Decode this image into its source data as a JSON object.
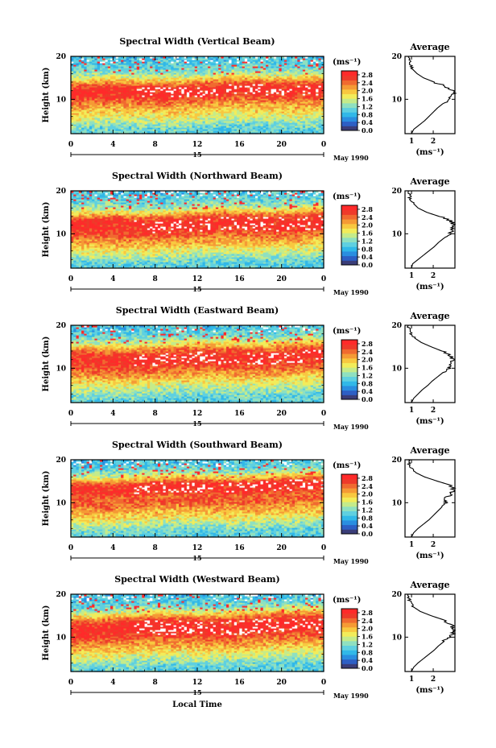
{
  "colors": {
    "scale": [
      "#3a3d78",
      "#2d5fc4",
      "#2a8ee0",
      "#31b8e8",
      "#5fd0e0",
      "#8fe0c0",
      "#c5eb8a",
      "#f2ec5a",
      "#f8c840",
      "#f59a35",
      "#f06a30",
      "#ee3a2a",
      "#ff2a2a"
    ]
  },
  "figure": {
    "xlabel": "Local Time",
    "date_label": "May 1990",
    "colorbar_unit": "(ms⁻¹)",
    "average_unit": "(ms⁻¹)",
    "height_label": "Height (km)"
  },
  "chart_data": [
    {
      "type": "heatmap",
      "title": "Spectral Width (Vertical Beam)",
      "ylabel": "Height (km)",
      "x_ticks": [
        "0",
        "4",
        "8",
        "12",
        "16",
        "20",
        "0"
      ],
      "xlim": [
        0,
        24
      ],
      "y_ticks": [
        "10",
        "20"
      ],
      "ylim": [
        2,
        20
      ],
      "day_label": "15",
      "date_label": "May 1990",
      "colorbar": {
        "unit": "(ms⁻¹)",
        "ticks": [
          "2.8",
          "2.4",
          "2.0",
          "1.6",
          "1.2",
          "0.8",
          "0.4",
          "0.0"
        ],
        "range": [
          0,
          3.0
        ]
      },
      "average": {
        "title": "Average",
        "x_ticks": [
          "1",
          "2"
        ],
        "xlim": [
          0.7,
          3.0
        ],
        "y_ticks": [
          "10",
          "20"
        ],
        "ylim": [
          2,
          20
        ],
        "xlabel": "(ms⁻¹)",
        "profile": {
          "height": [
            2,
            3,
            4,
            5,
            6,
            7,
            8,
            9,
            10,
            11,
            12,
            13,
            14,
            15,
            16,
            17,
            18,
            19,
            20
          ],
          "width": [
            1.0,
            1.1,
            1.35,
            1.6,
            1.8,
            2.0,
            2.2,
            2.45,
            2.7,
            2.95,
            2.9,
            2.6,
            2.05,
            1.55,
            1.25,
            1.05,
            0.95,
            0.9,
            0.85
          ]
        }
      }
    },
    {
      "type": "heatmap",
      "title": "Spectral Width (Northward Beam)",
      "ylabel": "Height (km)",
      "x_ticks": [
        "0",
        "4",
        "8",
        "12",
        "16",
        "20",
        "0"
      ],
      "xlim": [
        0,
        24
      ],
      "y_ticks": [
        "10",
        "20"
      ],
      "ylim": [
        2,
        20
      ],
      "day_label": "15",
      "date_label": "May 1990",
      "colorbar": {
        "unit": "(ms⁻¹)",
        "ticks": [
          "2.8",
          "2.4",
          "2.0",
          "1.6",
          "1.2",
          "0.8",
          "0.4",
          "0.0"
        ],
        "range": [
          0,
          3.0
        ]
      },
      "average": {
        "title": "Average",
        "x_ticks": [
          "1",
          "2"
        ],
        "xlim": [
          0.7,
          3.0
        ],
        "y_ticks": [
          "10",
          "20"
        ],
        "ylim": [
          2,
          20
        ],
        "xlabel": "(ms⁻¹)",
        "profile": {
          "height": [
            2,
            3,
            4,
            5,
            6,
            7,
            8,
            9,
            10,
            11,
            12,
            13,
            14,
            15,
            16,
            17,
            18,
            19,
            20
          ],
          "width": [
            1.0,
            1.05,
            1.3,
            1.55,
            1.8,
            2.05,
            2.25,
            2.5,
            2.75,
            2.9,
            2.95,
            2.8,
            2.3,
            1.7,
            1.3,
            1.1,
            0.95,
            0.9,
            0.85
          ]
        }
      }
    },
    {
      "type": "heatmap",
      "title": "Spectral Width (Eastward Beam)",
      "ylabel": "Height (km)",
      "x_ticks": [
        "0",
        "4",
        "8",
        "12",
        "16",
        "20",
        "0"
      ],
      "xlim": [
        0,
        24
      ],
      "y_ticks": [
        "10",
        "20"
      ],
      "ylim": [
        2,
        20
      ],
      "day_label": "15",
      "date_label": "May 1990",
      "colorbar": {
        "unit": "(ms⁻¹)",
        "ticks": [
          "2.8",
          "2.4",
          "2.0",
          "1.6",
          "1.2",
          "0.8",
          "0.4",
          "0.0"
        ],
        "range": [
          0,
          3.0
        ]
      },
      "average": {
        "title": "Average",
        "x_ticks": [
          "1",
          "2"
        ],
        "xlim": [
          0.7,
          3.0
        ],
        "y_ticks": [
          "10",
          "20"
        ],
        "ylim": [
          2,
          20
        ],
        "xlabel": "(ms⁻¹)",
        "profile": {
          "height": [
            2,
            3,
            4,
            5,
            6,
            7,
            8,
            9,
            10,
            11,
            12,
            13,
            14,
            15,
            16,
            17,
            18,
            19,
            20
          ],
          "width": [
            1.0,
            1.1,
            1.3,
            1.5,
            1.75,
            1.95,
            2.2,
            2.45,
            2.7,
            2.85,
            2.9,
            2.75,
            2.4,
            1.9,
            1.45,
            1.15,
            1.0,
            0.9,
            0.85
          ]
        }
      }
    },
    {
      "type": "heatmap",
      "title": "Spectral Width (Southward Beam)",
      "ylabel": "Height (km)",
      "x_ticks": [
        "0",
        "4",
        "8",
        "12",
        "16",
        "20",
        "0"
      ],
      "xlim": [
        0,
        24
      ],
      "y_ticks": [
        "10",
        "20"
      ],
      "ylim": [
        2,
        20
      ],
      "day_label": "15",
      "date_label": "May 1990",
      "colorbar": {
        "unit": "(ms⁻¹)",
        "ticks": [
          "2.8",
          "2.4",
          "2.0",
          "1.6",
          "1.2",
          "0.8",
          "0.4",
          "0.0"
        ],
        "range": [
          0,
          3.0
        ]
      },
      "average": {
        "title": "Average",
        "x_ticks": [
          "1",
          "2"
        ],
        "xlim": [
          0.7,
          3.0
        ],
        "y_ticks": [
          "10",
          "20"
        ],
        "ylim": [
          2,
          20
        ],
        "xlabel": "(ms⁻¹)",
        "profile": {
          "height": [
            2,
            3,
            4,
            5,
            6,
            7,
            8,
            9,
            10,
            11,
            12,
            13,
            14,
            15,
            16,
            17,
            18,
            19,
            20
          ],
          "width": [
            1.0,
            1.1,
            1.3,
            1.55,
            1.8,
            2.0,
            2.2,
            2.4,
            2.6,
            2.55,
            2.8,
            2.95,
            2.85,
            2.2,
            1.6,
            1.2,
            1.0,
            0.9,
            0.85
          ]
        }
      }
    },
    {
      "type": "heatmap",
      "title": "Spectral Width (Westward Beam)",
      "ylabel": "Height (km)",
      "x_ticks": [
        "0",
        "4",
        "8",
        "12",
        "16",
        "20",
        "0"
      ],
      "xlim": [
        0,
        24
      ],
      "y_ticks": [
        "10",
        "20"
      ],
      "ylim": [
        2,
        20
      ],
      "day_label": "15",
      "date_label": "May 1990",
      "colorbar": {
        "unit": "(ms⁻¹)",
        "ticks": [
          "2.8",
          "2.4",
          "2.0",
          "1.6",
          "1.2",
          "0.8",
          "0.4",
          "0.0"
        ],
        "range": [
          0,
          3.0
        ]
      },
      "average": {
        "title": "Average",
        "x_ticks": [
          "1",
          "2"
        ],
        "xlim": [
          0.7,
          3.0
        ],
        "y_ticks": [
          "10",
          "20"
        ],
        "ylim": [
          2,
          20
        ],
        "xlabel": "(ms⁻¹)",
        "profile": {
          "height": [
            2,
            3,
            4,
            5,
            6,
            7,
            8,
            9,
            10,
            11,
            12,
            13,
            14,
            15,
            16,
            17,
            18,
            19,
            20
          ],
          "width": [
            1.0,
            1.1,
            1.3,
            1.55,
            1.8,
            2.05,
            2.25,
            2.5,
            2.75,
            2.9,
            2.95,
            2.85,
            2.5,
            1.9,
            1.4,
            1.1,
            0.95,
            0.88,
            0.85
          ]
        }
      }
    }
  ]
}
